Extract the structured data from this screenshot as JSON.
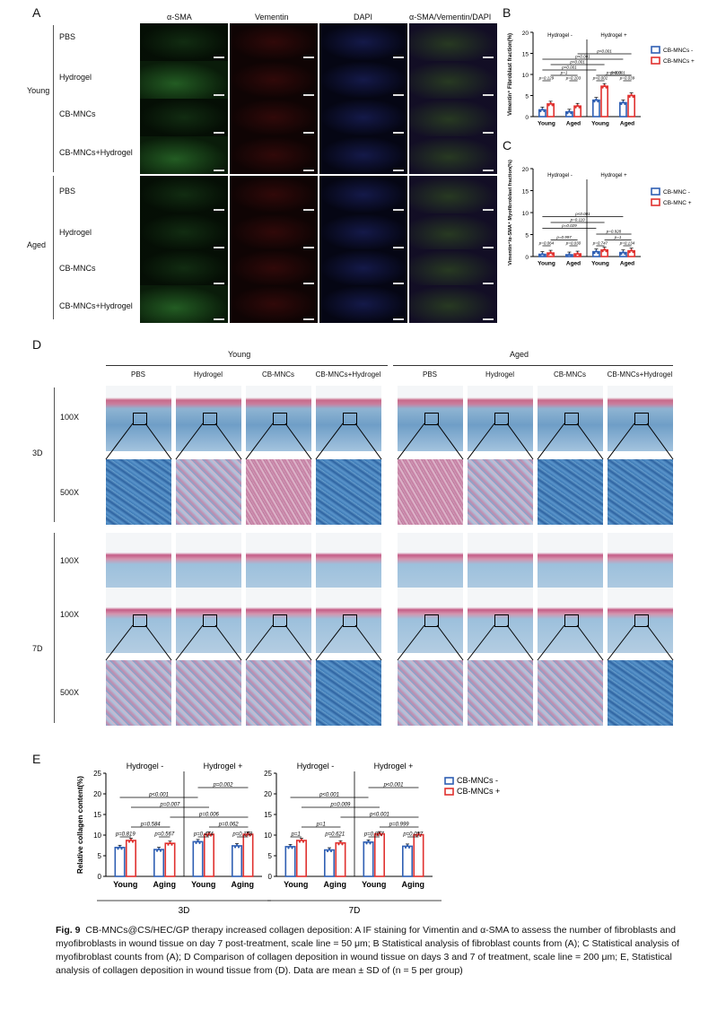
{
  "panel_letters": {
    "a": "A",
    "b": "B",
    "c": "C",
    "d": "D",
    "e": "E"
  },
  "panel_a": {
    "columns": [
      "α-SMA",
      "Vementin",
      "DAPI",
      "α-SMA/Vementin/DAPI"
    ],
    "group_young": "Young",
    "group_aged": "Aged",
    "rows": [
      "PBS",
      "Hydrogel",
      "CB-MNCs",
      "CB-MNCs+Hydrogel",
      "PBS",
      "Hydrogel",
      "CB-MNCs",
      "CB-MNCs+Hydrogel"
    ]
  },
  "panel_d": {
    "group_young": "Young",
    "group_aged": "Aged",
    "columns": [
      "PBS",
      "Hydrogel",
      "CB-MNCs",
      "CB-MNCs+Hydrogel",
      "PBS",
      "Hydrogel",
      "CB-MNCs",
      "CB-MNCs+Hydrogel"
    ],
    "day3": "3D",
    "day7": "7D",
    "mag_rows": [
      "100X",
      "500X",
      "100X",
      "100X",
      "500X"
    ]
  },
  "caption": {
    "fig_label": "Fig. 9",
    "text": "CB-MNCs@CS/HEC/GP therapy increased collagen deposition: A IF staining for Vimentin and α-SMA to assess the number of fibroblasts and myofibroblasts in wound tissue on day 7 post-treatment, scale line = 50 μm; B Statistical analysis of fibroblast counts from (A); C Statistical analysis of myofibroblast counts from (A); D Comparison of collagen deposition in wound tissue on days 3 and 7 of treatment, scale line = 200 μm; E, Statistical analysis of collagen deposition in wound tissue from (D). Data are mean ± SD of (n = 5 per group)"
  },
  "colors": {
    "neg": "#2f5fb3",
    "pos": "#e0312f"
  },
  "chart_data": [
    {
      "id": "B",
      "type": "bar",
      "ylabel": "Vimentin⁺ Fibroblast fraction(%)",
      "ylim": [
        0,
        20
      ],
      "yticks": [
        0,
        5,
        10,
        15,
        20
      ],
      "categories": [
        "Young",
        "Aged",
        "Young",
        "Aged"
      ],
      "group_labels": [
        "Hydrogel -",
        "Hydrogel +"
      ],
      "legend": [
        "CB-MNCs -",
        "CB-MNCs +"
      ],
      "series": [
        {
          "name": "CB-MNCs -",
          "values": [
            1.6,
            1.1,
            3.9,
            3.3
          ]
        },
        {
          "name": "CB-MNCs +",
          "values": [
            3.0,
            2.5,
            7.2,
            5.0
          ]
        }
      ],
      "brackets": [
        {
          "label": "p=0.129",
          "from": 0,
          "to": 1,
          "level": 0
        },
        {
          "label": "p=0.103",
          "from": 2,
          "to": 3,
          "level": 0
        },
        {
          "label": "p<0.001",
          "from": 4,
          "to": 5,
          "level": 0
        },
        {
          "label": "p=0.039",
          "from": 6,
          "to": 7,
          "level": 0
        },
        {
          "label": "p=1",
          "from": 1,
          "to": 3,
          "level": 1
        },
        {
          "label": "p<0.001",
          "from": 5,
          "to": 7,
          "level": 1
        },
        {
          "label": "p=0.003",
          "from": 4,
          "to": 7,
          "level": 1
        },
        {
          "label": "p<0.001",
          "from": 0,
          "to": 4,
          "level": 2
        },
        {
          "label": "p<0.001",
          "from": 1,
          "to": 5,
          "level": 3
        },
        {
          "label": "p<0.001",
          "from": 0,
          "to": 6,
          "level": 4
        },
        {
          "label": "p<0.001",
          "from": 3,
          "to": 7,
          "level": 5
        }
      ]
    },
    {
      "id": "C",
      "type": "bar",
      "ylabel": "Vimentin⁺/α-SMA⁺ Myofibroblast fraction(%)",
      "ylim": [
        0,
        20
      ],
      "yticks": [
        0,
        5,
        10,
        15,
        20
      ],
      "categories": [
        "Young",
        "Aged",
        "Young",
        "Aged"
      ],
      "group_labels": [
        "Hydrogel -",
        "Hydrogel +"
      ],
      "legend": [
        "CB-MNC -",
        "CB-MNC +"
      ],
      "series": [
        {
          "name": "CB-MNC -",
          "values": [
            0.5,
            0.4,
            1.1,
            0.9
          ]
        },
        {
          "name": "CB-MNC +",
          "values": [
            0.8,
            0.6,
            1.5,
            1.3
          ]
        }
      ],
      "brackets": [
        {
          "label": "p=0.064",
          "from": 0,
          "to": 1,
          "level": 0
        },
        {
          "label": "p=0.030",
          "from": 2,
          "to": 3,
          "level": 0
        },
        {
          "label": "p=0.747",
          "from": 4,
          "to": 5,
          "level": 0
        },
        {
          "label": "p=0.134",
          "from": 6,
          "to": 7,
          "level": 0
        },
        {
          "label": "p=0.997",
          "from": 1,
          "to": 3,
          "level": 1
        },
        {
          "label": "p=1",
          "from": 5,
          "to": 7,
          "level": 1
        },
        {
          "label": "p=0.928",
          "from": 4,
          "to": 7,
          "level": 2
        },
        {
          "label": "p=0.029",
          "from": 0,
          "to": 4,
          "level": 3
        },
        {
          "label": "p=0.110",
          "from": 1,
          "to": 5,
          "level": 4
        },
        {
          "label": "p<0.001",
          "from": 0,
          "to": 6,
          "level": 5
        }
      ]
    },
    {
      "id": "E3",
      "type": "bar",
      "ylabel": "Relative collagen content(%)",
      "xlabel": "3D",
      "ylim": [
        0,
        25
      ],
      "yticks": [
        0,
        5,
        10,
        15,
        20,
        25
      ],
      "categories": [
        "Young",
        "Aging",
        "Young",
        "Aging"
      ],
      "group_labels": [
        "Hydrogel -",
        "Hydrogel +"
      ],
      "legend": [
        "CB-MNCs -",
        "CB-MNCs +"
      ],
      "series": [
        {
          "name": "CB-MNCs -",
          "values": [
            7.0,
            6.5,
            8.4,
            7.4
          ]
        },
        {
          "name": "CB-MNCs +",
          "values": [
            8.7,
            8.0,
            10.2,
            10.2
          ]
        }
      ],
      "brackets": [
        {
          "label": "p=0.819",
          "from": 0,
          "to": 1,
          "level": 0
        },
        {
          "label": "p=0.567",
          "from": 2,
          "to": 3,
          "level": 0
        },
        {
          "label": "p=0.414",
          "from": 4,
          "to": 5,
          "level": 0
        },
        {
          "label": "p=0.158",
          "from": 6,
          "to": 7,
          "level": 0
        },
        {
          "label": "p=0.584",
          "from": 1,
          "to": 3,
          "level": 1
        },
        {
          "label": "p=0.062",
          "from": 5,
          "to": 7,
          "level": 1
        },
        {
          "label": "p=0.006",
          "from": 3,
          "to": 7,
          "level": 2
        },
        {
          "label": "p=0.007",
          "from": 1,
          "to": 5,
          "level": 3
        },
        {
          "label": "p<0.001",
          "from": 0,
          "to": 4,
          "level": 4
        },
        {
          "label": "p=0.002",
          "from": 4,
          "to": 7,
          "level": 5
        }
      ]
    },
    {
      "id": "E7",
      "type": "bar",
      "ylabel": "",
      "xlabel": "7D",
      "ylim": [
        0,
        25
      ],
      "yticks": [
        0,
        5,
        10,
        15,
        20,
        25
      ],
      "categories": [
        "Young",
        "Aging",
        "Young",
        "Aging"
      ],
      "group_labels": [
        "Hydrogel -",
        "Hydrogel +"
      ],
      "legend": [
        "CB-MNCs -",
        "CB-MNCs +"
      ],
      "series": [
        {
          "name": "CB-MNCs -",
          "values": [
            7.2,
            6.4,
            8.3,
            7.3
          ]
        },
        {
          "name": "CB-MNCs +",
          "values": [
            8.7,
            8.1,
            10.3,
            10.1
          ]
        }
      ],
      "brackets": [
        {
          "label": "p=1",
          "from": 0,
          "to": 1,
          "level": 0
        },
        {
          "label": "p=0.621",
          "from": 2,
          "to": 3,
          "level": 0
        },
        {
          "label": "p=0.057",
          "from": 4,
          "to": 5,
          "level": 0
        },
        {
          "label": "p=0.017",
          "from": 6,
          "to": 7,
          "level": 0
        },
        {
          "label": "p=1",
          "from": 1,
          "to": 3,
          "level": 1
        },
        {
          "label": "p=0.999",
          "from": 5,
          "to": 7,
          "level": 1
        },
        {
          "label": "p<0.001",
          "from": 3,
          "to": 7,
          "level": 2
        },
        {
          "label": "p=0.009",
          "from": 1,
          "to": 5,
          "level": 3
        },
        {
          "label": "p<0.001",
          "from": 0,
          "to": 4,
          "level": 4
        },
        {
          "label": "p<0.001",
          "from": 4,
          "to": 7,
          "level": 5
        }
      ]
    }
  ]
}
